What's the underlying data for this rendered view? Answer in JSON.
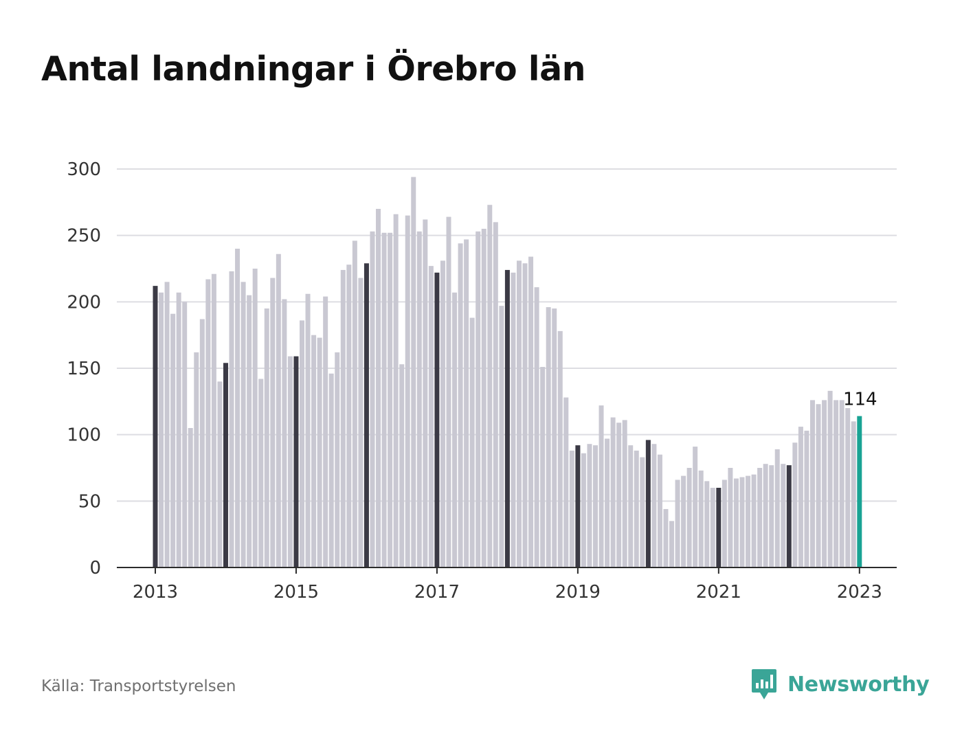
{
  "title": "Antal landningar i Örebro län",
  "source": "Källa: Transportstyrelsen",
  "brand": {
    "name": "Newsworthy",
    "icon": "newsworthy-logo-icon"
  },
  "colors": {
    "bar": "#c9c8d2",
    "january_bar": "#3b3a45",
    "latest_bar": "#19a394",
    "grid": "#dddde2",
    "axis": "#2b2b2b",
    "brand": "#3aa597"
  },
  "chart_data": {
    "type": "bar",
    "title": "Antal landningar i Örebro län",
    "xlabel": "",
    "ylabel": "",
    "ylim": [
      0,
      300
    ],
    "yticks": [
      0,
      50,
      100,
      150,
      200,
      250,
      300
    ],
    "xticks": [
      "2013",
      "2015",
      "2017",
      "2019",
      "2021",
      "2023"
    ],
    "grid": true,
    "start": "2013-01",
    "frequency": "monthly",
    "highlight_label": "114",
    "values": [
      212,
      207,
      215,
      191,
      207,
      200,
      105,
      162,
      187,
      217,
      221,
      140,
      154,
      223,
      240,
      215,
      205,
      225,
      142,
      195,
      218,
      236,
      202,
      159,
      159,
      186,
      206,
      175,
      173,
      204,
      146,
      162,
      224,
      228,
      246,
      218,
      229,
      253,
      270,
      252,
      252,
      266,
      153,
      265,
      294,
      253,
      262,
      227,
      222,
      231,
      264,
      207,
      244,
      247,
      188,
      253,
      255,
      273,
      260,
      197,
      224,
      222,
      231,
      229,
      234,
      211,
      151,
      196,
      195,
      178,
      128,
      88,
      92,
      86,
      93,
      92,
      122,
      97,
      113,
      109,
      111,
      92,
      88,
      83,
      96,
      93,
      85,
      44,
      35,
      66,
      69,
      75,
      91,
      73,
      65,
      60,
      60,
      66,
      75,
      67,
      68,
      69,
      70,
      75,
      78,
      77,
      89,
      78,
      77,
      94,
      106,
      103,
      126,
      123,
      126,
      133,
      126,
      126,
      120,
      110,
      114
    ]
  }
}
